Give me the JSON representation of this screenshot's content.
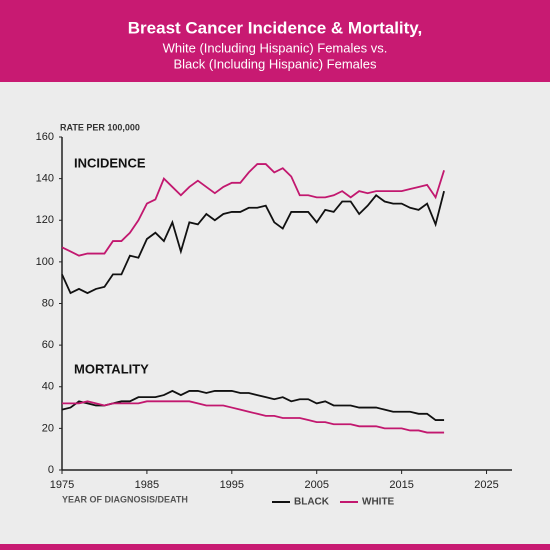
{
  "chart_data": {
    "type": "line",
    "title": "Breast Cancer Incidence & Mortality,",
    "subtitle": [
      "White (Including Hispanic) Females vs.",
      "Black (Including Hispanic) Females"
    ],
    "y_label": "RATE PER 100,000",
    "x_label": "YEAR OF DIAGNOSIS/DEATH",
    "annotations": {
      "incidence": "INCIDENCE",
      "mortality": "MORTALITY"
    },
    "x": [
      1975,
      1976,
      1977,
      1978,
      1979,
      1980,
      1981,
      1982,
      1983,
      1984,
      1985,
      1986,
      1987,
      1988,
      1989,
      1990,
      1991,
      1992,
      1993,
      1994,
      1995,
      1996,
      1997,
      1998,
      1999,
      2000,
      2001,
      2002,
      2003,
      2004,
      2005,
      2006,
      2007,
      2008,
      2009,
      2010,
      2011,
      2012,
      2013,
      2014,
      2015,
      2016,
      2017,
      2018,
      2019,
      2020
    ],
    "series": [
      {
        "name": "BLACK",
        "color": "#111111",
        "incidence": [
          94,
          85,
          87,
          85,
          87,
          88,
          94,
          94,
          103,
          102,
          111,
          114,
          110,
          119,
          105,
          119,
          118,
          123,
          120,
          123,
          124,
          124,
          126,
          126,
          127,
          119,
          116,
          124,
          124,
          124,
          119,
          125,
          124,
          129,
          129,
          123,
          127,
          132,
          129,
          128,
          128,
          126,
          125,
          128,
          118,
          134
        ],
        "mortality": [
          29,
          30,
          33,
          32,
          31,
          31,
          32,
          33,
          33,
          35,
          35,
          35,
          36,
          38,
          36,
          38,
          38,
          37,
          38,
          38,
          38,
          37,
          37,
          36,
          35,
          34,
          35,
          33,
          34,
          34,
          32,
          33,
          31,
          31,
          31,
          30,
          30,
          30,
          29,
          28,
          28,
          28,
          27,
          27,
          24,
          24
        ]
      },
      {
        "name": "WHITE",
        "color": "#c2186f",
        "incidence": [
          107,
          105,
          103,
          104,
          104,
          104,
          110,
          110,
          114,
          120,
          128,
          130,
          140,
          136,
          132,
          136,
          139,
          136,
          133,
          136,
          138,
          138,
          143,
          147,
          147,
          143,
          145,
          141,
          132,
          132,
          131,
          131,
          132,
          134,
          131,
          134,
          133,
          134,
          134,
          134,
          134,
          135,
          136,
          137,
          131,
          144
        ],
        "mortality": [
          32,
          32,
          32,
          33,
          32,
          31,
          32,
          32,
          32,
          32,
          33,
          33,
          33,
          33,
          33,
          33,
          32,
          31,
          31,
          31,
          30,
          29,
          28,
          27,
          26,
          26,
          25,
          25,
          25,
          24,
          23,
          23,
          22,
          22,
          22,
          21,
          21,
          21,
          20,
          20,
          20,
          19,
          19,
          18,
          18,
          18
        ]
      }
    ],
    "xlim": [
      1975,
      2028
    ],
    "ylim": [
      0,
      160
    ],
    "xticks": [
      1975,
      1985,
      1995,
      2005,
      2015,
      2025
    ],
    "yticks": [
      0,
      20,
      40,
      60,
      80,
      100,
      120,
      140,
      160
    ],
    "grid": false
  }
}
